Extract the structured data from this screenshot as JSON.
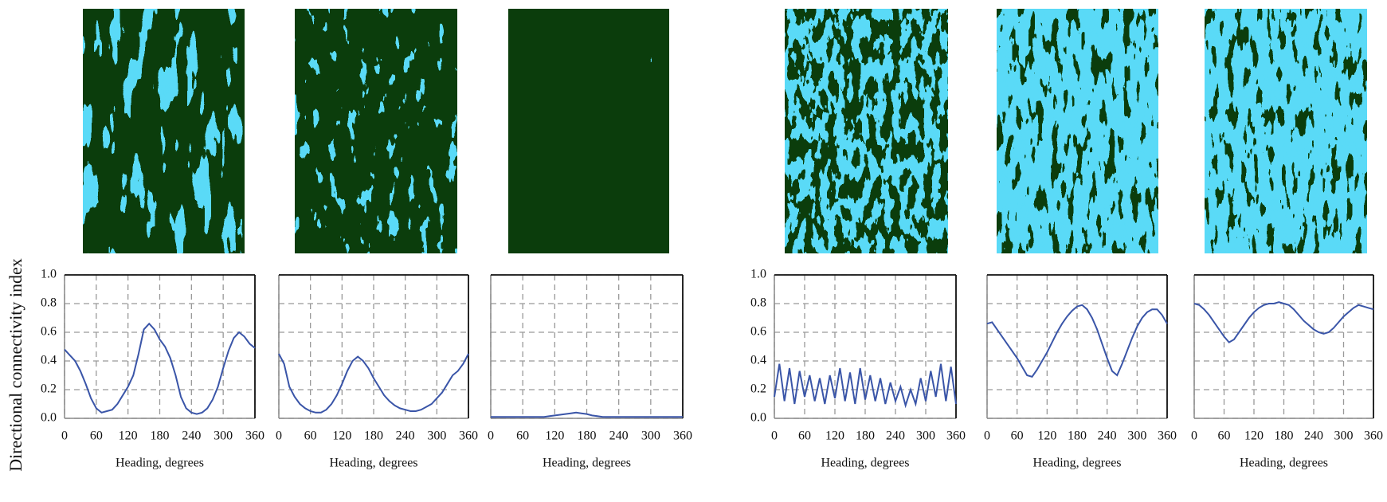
{
  "chart_data": [
    {
      "type": "line",
      "ylabel": "Directional connectivity index",
      "xlabel": "Heading, degrees",
      "xlim": [
        0,
        360
      ],
      "xticks": [
        0,
        60,
        120,
        180,
        240,
        300,
        360
      ],
      "ylim": [
        0,
        1
      ],
      "yticks": [
        {
          "value": 0,
          "label": "0.0"
        },
        0.2,
        0.4,
        0.6,
        0.8,
        {
          "value": 1,
          "label": "1.0"
        }
      ],
      "ytick_labels": true,
      "grid": true,
      "x": [
        0,
        10,
        20,
        30,
        40,
        50,
        60,
        70,
        80,
        90,
        100,
        110,
        120,
        130,
        140,
        150,
        160,
        170,
        180,
        190,
        200,
        210,
        220,
        230,
        240,
        250,
        260,
        270,
        280,
        290,
        300,
        310,
        320,
        330,
        340,
        350,
        360
      ],
      "series": [
        {
          "color": "#3a55a8",
          "values": [
            0.48,
            0.44,
            0.4,
            0.33,
            0.24,
            0.14,
            0.07,
            0.04,
            0.05,
            0.06,
            0.1,
            0.16,
            0.22,
            0.3,
            0.45,
            0.62,
            0.66,
            0.62,
            0.55,
            0.5,
            0.42,
            0.3,
            0.15,
            0.07,
            0.04,
            0.03,
            0.04,
            0.07,
            0.13,
            0.22,
            0.35,
            0.47,
            0.56,
            0.6,
            0.57,
            0.52,
            0.49
          ]
        }
      ]
    },
    {
      "type": "line",
      "xlabel": "Heading, degrees",
      "xlim": [
        0,
        360
      ],
      "xticks": [
        0,
        60,
        120,
        180,
        240,
        300,
        360
      ],
      "ylim": [
        0,
        1
      ],
      "yticks": [
        0,
        0.2,
        0.4,
        0.6,
        0.8,
        1
      ],
      "ytick_labels": false,
      "grid": true,
      "x": [
        0,
        10,
        20,
        30,
        40,
        50,
        60,
        70,
        80,
        90,
        100,
        110,
        120,
        130,
        140,
        150,
        160,
        170,
        180,
        190,
        200,
        210,
        220,
        230,
        240,
        250,
        260,
        270,
        280,
        290,
        300,
        310,
        320,
        330,
        340,
        350,
        360
      ],
      "series": [
        {
          "color": "#3a55a8",
          "values": [
            0.45,
            0.38,
            0.22,
            0.15,
            0.1,
            0.07,
            0.05,
            0.04,
            0.04,
            0.06,
            0.1,
            0.16,
            0.24,
            0.33,
            0.4,
            0.43,
            0.4,
            0.35,
            0.28,
            0.22,
            0.16,
            0.12,
            0.09,
            0.07,
            0.06,
            0.05,
            0.05,
            0.06,
            0.08,
            0.1,
            0.14,
            0.18,
            0.24,
            0.3,
            0.33,
            0.38,
            0.45
          ]
        }
      ]
    },
    {
      "type": "line",
      "xlabel": "Heading, degrees",
      "xlim": [
        0,
        360
      ],
      "xticks": [
        0,
        60,
        120,
        180,
        240,
        300,
        360
      ],
      "ylim": [
        0,
        1
      ],
      "yticks": [
        0,
        0.2,
        0.4,
        0.6,
        0.8,
        1
      ],
      "ytick_labels": false,
      "grid": true,
      "x": [
        0,
        10,
        20,
        30,
        40,
        50,
        60,
        70,
        80,
        90,
        100,
        110,
        120,
        130,
        140,
        150,
        160,
        170,
        180,
        190,
        200,
        210,
        220,
        230,
        240,
        250,
        260,
        270,
        280,
        290,
        300,
        310,
        320,
        330,
        340,
        350,
        360
      ],
      "series": [
        {
          "color": "#3a55a8",
          "values": [
            0.01,
            0.01,
            0.01,
            0.01,
            0.01,
            0.01,
            0.01,
            0.01,
            0.01,
            0.01,
            0.01,
            0.015,
            0.02,
            0.025,
            0.03,
            0.035,
            0.04,
            0.035,
            0.03,
            0.02,
            0.015,
            0.01,
            0.01,
            0.01,
            0.01,
            0.01,
            0.01,
            0.01,
            0.01,
            0.01,
            0.01,
            0.01,
            0.01,
            0.01,
            0.01,
            0.01,
            0.01
          ]
        }
      ]
    },
    {
      "type": "line",
      "xlabel": "Heading, degrees",
      "xlim": [
        0,
        360
      ],
      "xticks": [
        0,
        60,
        120,
        180,
        240,
        300,
        360
      ],
      "ylim": [
        0,
        1
      ],
      "yticks": [
        {
          "value": 0,
          "label": "0.0"
        },
        0.2,
        0.4,
        0.6,
        0.8,
        {
          "value": 1,
          "label": "1.0"
        }
      ],
      "ytick_labels": true,
      "grid": true,
      "x": [
        0,
        10,
        20,
        30,
        40,
        50,
        60,
        70,
        80,
        90,
        100,
        110,
        120,
        130,
        140,
        150,
        160,
        170,
        180,
        190,
        200,
        210,
        220,
        230,
        240,
        250,
        260,
        270,
        280,
        290,
        300,
        310,
        320,
        330,
        340,
        350,
        360
      ],
      "series": [
        {
          "color": "#3a55a8",
          "values": [
            0.15,
            0.38,
            0.12,
            0.35,
            0.1,
            0.33,
            0.15,
            0.3,
            0.12,
            0.28,
            0.1,
            0.3,
            0.14,
            0.35,
            0.12,
            0.32,
            0.1,
            0.35,
            0.13,
            0.3,
            0.12,
            0.28,
            0.1,
            0.25,
            0.12,
            0.22,
            0.09,
            0.2,
            0.1,
            0.28,
            0.12,
            0.33,
            0.15,
            0.38,
            0.12,
            0.36,
            0.1
          ]
        }
      ]
    },
    {
      "type": "line",
      "xlabel": "Heading, degrees",
      "xlim": [
        0,
        360
      ],
      "xticks": [
        0,
        60,
        120,
        180,
        240,
        300,
        360
      ],
      "ylim": [
        0,
        1
      ],
      "yticks": [
        0,
        0.2,
        0.4,
        0.6,
        0.8,
        1
      ],
      "ytick_labels": false,
      "grid": true,
      "x": [
        0,
        10,
        20,
        30,
        40,
        50,
        60,
        70,
        80,
        90,
        100,
        110,
        120,
        130,
        140,
        150,
        160,
        170,
        180,
        190,
        200,
        210,
        220,
        230,
        240,
        250,
        260,
        270,
        280,
        290,
        300,
        310,
        320,
        330,
        340,
        350,
        360
      ],
      "series": [
        {
          "color": "#3a55a8",
          "values": [
            0.66,
            0.67,
            0.62,
            0.57,
            0.52,
            0.47,
            0.42,
            0.36,
            0.3,
            0.29,
            0.34,
            0.4,
            0.46,
            0.53,
            0.6,
            0.66,
            0.71,
            0.75,
            0.78,
            0.79,
            0.76,
            0.7,
            0.62,
            0.52,
            0.42,
            0.33,
            0.3,
            0.38,
            0.47,
            0.56,
            0.64,
            0.7,
            0.74,
            0.76,
            0.76,
            0.72,
            0.66
          ]
        }
      ]
    },
    {
      "type": "line",
      "xlabel": "Heading, degrees",
      "xlim": [
        0,
        360
      ],
      "xticks": [
        0,
        60,
        120,
        180,
        240,
        300,
        360
      ],
      "ylim": [
        0,
        1
      ],
      "yticks": [
        0,
        0.2,
        0.4,
        0.6,
        0.8,
        1
      ],
      "ytick_labels": false,
      "grid": true,
      "x": [
        0,
        10,
        20,
        30,
        40,
        50,
        60,
        70,
        80,
        90,
        100,
        110,
        120,
        130,
        140,
        150,
        160,
        170,
        180,
        190,
        200,
        210,
        220,
        230,
        240,
        250,
        260,
        270,
        280,
        290,
        300,
        310,
        320,
        330,
        340,
        350,
        360
      ],
      "series": [
        {
          "color": "#3a55a8",
          "values": [
            0.8,
            0.79,
            0.76,
            0.72,
            0.67,
            0.62,
            0.57,
            0.53,
            0.55,
            0.6,
            0.65,
            0.7,
            0.74,
            0.77,
            0.79,
            0.8,
            0.8,
            0.81,
            0.8,
            0.79,
            0.76,
            0.72,
            0.68,
            0.65,
            0.62,
            0.6,
            0.59,
            0.6,
            0.63,
            0.67,
            0.71,
            0.74,
            0.77,
            0.79,
            0.78,
            0.77,
            0.76
          ]
        }
      ]
    }
  ]
}
